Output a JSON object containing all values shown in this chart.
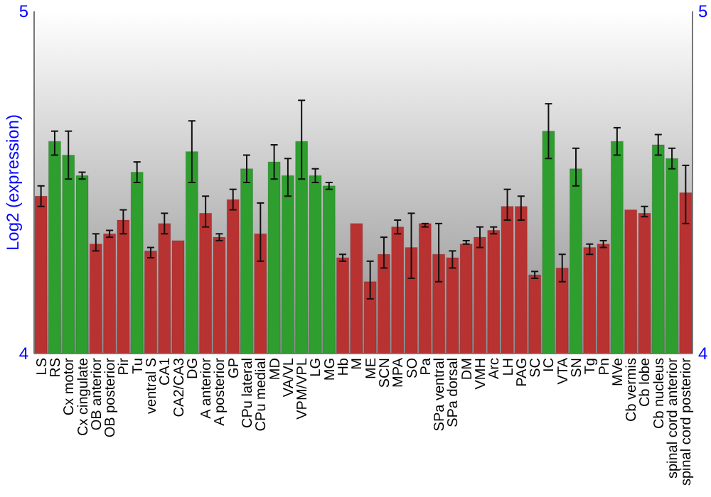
{
  "chart_data": {
    "type": "bar",
    "ylabel": "Log2 (expression)",
    "categories": [
      "LS",
      "RS",
      "Cx motor",
      "Cx cingulate",
      "OB anterior",
      "OB posterior",
      "Pir",
      "Tu",
      "ventral S",
      "CA1",
      "CA2/CA3",
      "DG",
      "A anterior",
      "A posterior",
      "GP",
      "CPu lateral",
      "CPu medial",
      "MD",
      "VA/VL",
      "VPM/VPL",
      "LG",
      "MG",
      "Hb",
      "M",
      "ME",
      "SCN",
      "MPA",
      "SO",
      "Pa",
      "SPa ventral",
      "SPa dorsal",
      "DM",
      "VMH",
      "Arc",
      "LH",
      "PAG",
      "SC",
      "IC",
      "VTA",
      "SN",
      "Tg",
      "Pn",
      "MVe",
      "Cb vermis",
      "Cb lobe",
      "Cb nucleus",
      "spinal cord anterior",
      "spinal cord posterior"
    ],
    "values": [
      4.46,
      4.62,
      4.58,
      4.52,
      4.32,
      4.35,
      4.39,
      4.53,
      4.3,
      4.38,
      4.33,
      4.59,
      4.41,
      4.34,
      4.45,
      4.54,
      4.35,
      4.56,
      4.52,
      4.62,
      4.52,
      4.49,
      4.28,
      4.38,
      4.21,
      4.29,
      4.37,
      4.31,
      4.38,
      4.29,
      4.28,
      4.32,
      4.34,
      4.36,
      4.43,
      4.43,
      4.23,
      4.65,
      4.25,
      4.54,
      4.31,
      4.32,
      4.62,
      4.42,
      4.41,
      4.61,
      4.57,
      4.47
    ],
    "errors": [
      [
        4.43,
        4.49
      ],
      [
        4.58,
        4.65
      ],
      [
        4.51,
        4.65
      ],
      [
        4.51,
        4.53
      ],
      [
        4.3,
        4.35
      ],
      [
        4.34,
        4.36
      ],
      [
        4.35,
        4.42
      ],
      [
        4.5,
        4.56
      ],
      [
        4.28,
        4.31
      ],
      [
        4.35,
        4.41
      ],
      null,
      [
        4.5,
        4.68
      ],
      [
        4.37,
        4.46
      ],
      [
        4.33,
        4.35
      ],
      [
        4.42,
        4.48
      ],
      [
        4.5,
        4.58
      ],
      [
        4.27,
        4.44
      ],
      [
        4.51,
        4.61
      ],
      [
        4.46,
        4.57
      ],
      [
        4.51,
        4.74
      ],
      [
        4.5,
        4.54
      ],
      [
        4.48,
        4.5
      ],
      [
        4.27,
        4.29
      ],
      null,
      [
        4.16,
        4.27
      ],
      [
        4.25,
        4.34
      ],
      [
        4.35,
        4.39
      ],
      [
        4.22,
        4.41
      ],
      [
        4.37,
        4.38
      ],
      [
        4.21,
        4.38
      ],
      [
        4.25,
        4.3
      ],
      [
        4.32,
        4.33
      ],
      [
        4.31,
        4.37
      ],
      [
        4.35,
        4.37
      ],
      [
        4.39,
        4.48
      ],
      [
        4.39,
        4.46
      ],
      [
        4.22,
        4.24
      ],
      [
        4.57,
        4.73
      ],
      [
        4.21,
        4.29
      ],
      [
        4.49,
        4.6
      ],
      [
        4.29,
        4.32
      ],
      [
        4.31,
        4.33
      ],
      [
        4.58,
        4.66
      ],
      null,
      [
        4.4,
        4.43
      ],
      [
        4.58,
        4.64
      ],
      [
        4.54,
        4.6
      ],
      [
        4.38,
        4.55
      ]
    ],
    "colors": [
      "#b83232",
      "#2e9e2e",
      "#2e9e2e",
      "#2e9e2e",
      "#b83232",
      "#b83232",
      "#b83232",
      "#2e9e2e",
      "#b83232",
      "#b83232",
      "#b83232",
      "#2e9e2e",
      "#b83232",
      "#b83232",
      "#b83232",
      "#2e9e2e",
      "#b83232",
      "#2e9e2e",
      "#2e9e2e",
      "#2e9e2e",
      "#2e9e2e",
      "#2e9e2e",
      "#b83232",
      "#b83232",
      "#b83232",
      "#b83232",
      "#b83232",
      "#b83232",
      "#b83232",
      "#b83232",
      "#b83232",
      "#b83232",
      "#b83232",
      "#b83232",
      "#b83232",
      "#b83232",
      "#b83232",
      "#2e9e2e",
      "#b83232",
      "#2e9e2e",
      "#b83232",
      "#b83232",
      "#2e9e2e",
      "#b83232",
      "#b83232",
      "#2e9e2e",
      "#2e9e2e",
      "#b83232"
    ],
    "ylim": [
      4,
      5
    ],
    "yticks": [
      4,
      5
    ],
    "y2lim": [
      4,
      5
    ],
    "y2ticks": [
      4,
      5
    ],
    "grid": false
  }
}
